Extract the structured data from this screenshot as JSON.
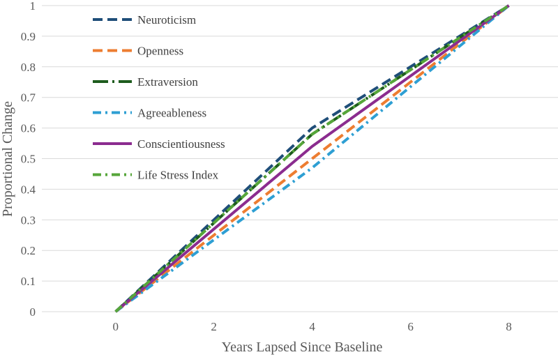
{
  "chart_data": {
    "type": "line",
    "title": "",
    "xlabel": "Years Lapsed Since Baseline",
    "ylabel": "Proportional Change",
    "xlim": [
      -1.5,
      9
    ],
    "ylim": [
      0,
      1
    ],
    "x_ticks": [
      0,
      2,
      4,
      6,
      8
    ],
    "x_tick_labels": [
      "0",
      "2",
      "4",
      "6",
      "8"
    ],
    "y_ticks": [
      0,
      0.1,
      0.2,
      0.3,
      0.4,
      0.5,
      0.6,
      0.7,
      0.8,
      0.9,
      1
    ],
    "y_tick_labels": [
      "0",
      "0.1",
      "0.2",
      "0.3",
      "0.4",
      "0.5",
      "0.6",
      "0.7",
      "0.8",
      "0.9",
      "1"
    ],
    "grid": "horizontal",
    "legend_position": "top-left",
    "series": [
      {
        "name": "Neuroticism",
        "color": "#1f4e79",
        "style": "dash",
        "x": [
          0,
          4,
          8
        ],
        "y": [
          0,
          0.6,
          1
        ]
      },
      {
        "name": "Openness",
        "color": "#ed7d31",
        "style": "dash",
        "x": [
          0,
          4,
          8
        ],
        "y": [
          0,
          0.5,
          1
        ]
      },
      {
        "name": "Extraversion",
        "color": "#1e5c1e",
        "style": "long-dash-dot",
        "x": [
          0,
          4,
          8
        ],
        "y": [
          0,
          0.58,
          1
        ]
      },
      {
        "name": "Agreeableness",
        "color": "#2e9fd3",
        "style": "dash-dot",
        "x": [
          0,
          4,
          8
        ],
        "y": [
          0,
          0.47,
          1
        ]
      },
      {
        "name": "Conscientiousness",
        "color": "#8b2c8f",
        "style": "solid",
        "x": [
          0,
          4,
          8
        ],
        "y": [
          0,
          0.54,
          1
        ]
      },
      {
        "name": "Life Stress Index",
        "color": "#56a63a",
        "style": "dash-dot",
        "x": [
          0,
          4,
          8
        ],
        "y": [
          0,
          0.58,
          1
        ]
      }
    ]
  }
}
